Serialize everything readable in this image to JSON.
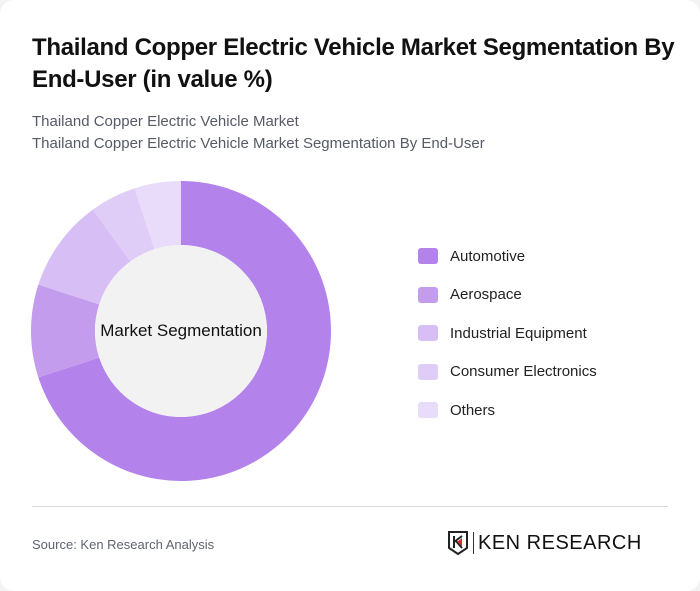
{
  "header": {
    "title": "Thailand Copper Electric Vehicle Market Segmentation By End-User (in value %)",
    "subtitle1": "Thailand Copper Electric Vehicle Market",
    "subtitle2": "Thailand Copper Electric Vehicle Market Segmentation By End-User"
  },
  "chart": {
    "center_label": "Market Segmentation"
  },
  "legend": [
    {
      "label": "Automotive",
      "color": "#b382ea"
    },
    {
      "label": "Aerospace",
      "color": "#c49cee"
    },
    {
      "label": "Industrial Equipment",
      "color": "#d7bff5"
    },
    {
      "label": "Consumer Electronics",
      "color": "#e0cdf7"
    },
    {
      "label": "Others",
      "color": "#e9dbfa"
    }
  ],
  "footer": {
    "source": "Source: Ken Research Analysis",
    "logo_text": "KEN RESEARCH"
  },
  "chart_data": {
    "type": "pie",
    "variant": "donut",
    "title": "Thailand Copper Electric Vehicle Market Segmentation By End-User (in value %)",
    "center_label": "Market Segmentation",
    "categories": [
      "Automotive",
      "Aerospace",
      "Industrial Equipment",
      "Consumer Electronics",
      "Others"
    ],
    "values": [
      70,
      10,
      10,
      5,
      5
    ],
    "colors": [
      "#b382ea",
      "#c49cee",
      "#d7bff5",
      "#e0cdf7",
      "#e9dbfa"
    ],
    "legend_position": "right"
  }
}
